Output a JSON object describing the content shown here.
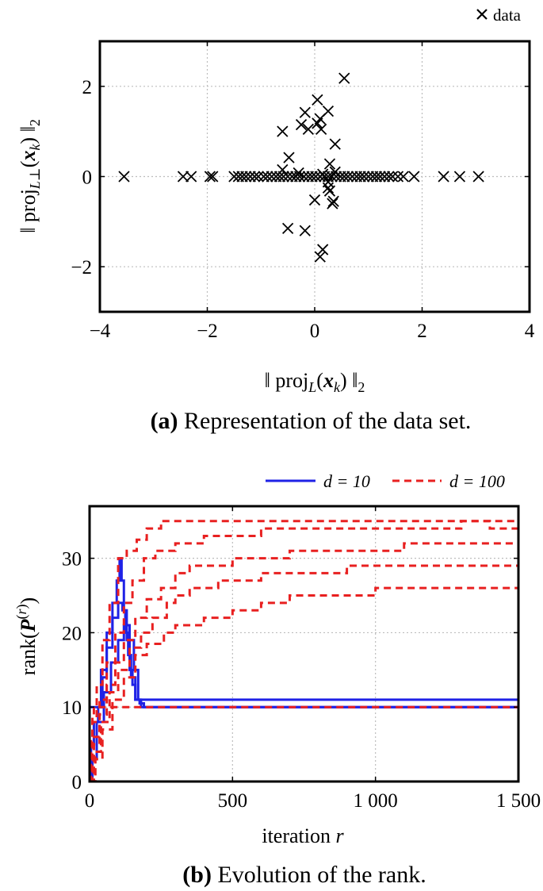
{
  "chart_data": [
    {
      "id": "a",
      "type": "scatter",
      "caption_label": "(a)",
      "caption_text": " Representation of the data set.",
      "xlabel": "‖ proj_L(x_k) ‖₂",
      "ylabel": "‖ proj_L⊥(x_k) ‖₂",
      "xlim": [
        -4,
        4
      ],
      "ylim": [
        -3,
        3
      ],
      "xticks": [
        -4,
        -2,
        0,
        2,
        4
      ],
      "xtick_labels": [
        "−4",
        "−2",
        "0",
        "2",
        "4"
      ],
      "yticks": [
        -2,
        0,
        2
      ],
      "ytick_labels": [
        "−2",
        "0",
        "2"
      ],
      "grid": true,
      "legend": {
        "position": "top-right",
        "entries": [
          {
            "name": "data",
            "marker": "x"
          }
        ]
      },
      "points": [
        [
          -3.55,
          0
        ],
        [
          -2.45,
          0
        ],
        [
          -2.3,
          0
        ],
        [
          -1.95,
          0
        ],
        [
          -1.9,
          0
        ],
        [
          -1.5,
          0
        ],
        [
          -1.42,
          0
        ],
        [
          -1.35,
          0
        ],
        [
          -1.28,
          0
        ],
        [
          -1.2,
          0
        ],
        [
          -1.12,
          0
        ],
        [
          -1.05,
          0
        ],
        [
          -0.95,
          0
        ],
        [
          -0.88,
          0
        ],
        [
          -0.8,
          0
        ],
        [
          -0.72,
          0
        ],
        [
          -0.65,
          0
        ],
        [
          -0.58,
          0
        ],
        [
          -0.5,
          0
        ],
        [
          -0.42,
          0
        ],
        [
          -0.35,
          0
        ],
        [
          -0.28,
          0
        ],
        [
          -0.2,
          0
        ],
        [
          -0.12,
          0
        ],
        [
          -0.05,
          0
        ],
        [
          0.02,
          0
        ],
        [
          0.1,
          0
        ],
        [
          0.18,
          0
        ],
        [
          0.25,
          0
        ],
        [
          0.32,
          0
        ],
        [
          0.4,
          0
        ],
        [
          0.48,
          0
        ],
        [
          0.55,
          0
        ],
        [
          0.62,
          0
        ],
        [
          0.7,
          0
        ],
        [
          0.78,
          0
        ],
        [
          0.85,
          0
        ],
        [
          0.92,
          0
        ],
        [
          1.0,
          0
        ],
        [
          1.08,
          0
        ],
        [
          1.15,
          0
        ],
        [
          1.22,
          0
        ],
        [
          1.3,
          0
        ],
        [
          1.38,
          0
        ],
        [
          1.45,
          0
        ],
        [
          1.55,
          0
        ],
        [
          1.65,
          0
        ],
        [
          1.85,
          0
        ],
        [
          2.4,
          0
        ],
        [
          2.7,
          0
        ],
        [
          3.05,
          0
        ],
        [
          0.55,
          2.18
        ],
        [
          0.05,
          1.7
        ],
        [
          0.25,
          1.45
        ],
        [
          -0.18,
          1.42
        ],
        [
          0.1,
          1.28
        ],
        [
          -0.25,
          1.15
        ],
        [
          0.05,
          1.18
        ],
        [
          -0.12,
          1.05
        ],
        [
          0.12,
          1.05
        ],
        [
          -0.6,
          1.0
        ],
        [
          0.38,
          0.72
        ],
        [
          -0.48,
          0.42
        ],
        [
          0.28,
          0.28
        ],
        [
          -0.6,
          0.15
        ],
        [
          0.38,
          0.1
        ],
        [
          -0.3,
          0.08
        ],
        [
          0.15,
          0.05
        ],
        [
          0.25,
          -0.12
        ],
        [
          0.25,
          -0.25
        ],
        [
          0.28,
          -0.32
        ],
        [
          0.35,
          -0.55
        ],
        [
          0.33,
          -0.6
        ],
        [
          0.0,
          -0.52
        ],
        [
          -0.5,
          -1.15
        ],
        [
          -0.18,
          -1.2
        ],
        [
          0.15,
          -1.62
        ],
        [
          0.1,
          -1.78
        ]
      ]
    },
    {
      "id": "b",
      "type": "line",
      "caption_label": "(b)",
      "caption_text": " Evolution of the rank.",
      "xlabel": "iteration",
      "xlabel_var": "r",
      "ylabel": "rank(P^(r))",
      "xlim": [
        0,
        1500
      ],
      "ylim": [
        0,
        37
      ],
      "xticks": [
        0,
        500,
        1000,
        1500
      ],
      "xtick_labels": [
        "0",
        "500",
        "1 000",
        "1 500"
      ],
      "yticks": [
        0,
        10,
        20,
        30
      ],
      "ytick_labels": [
        "0",
        "10",
        "20",
        "30"
      ],
      "grid": true,
      "legend": {
        "position": "top-right",
        "entries": [
          {
            "name": "d = 10",
            "color": "#1f22e6",
            "style": "solid"
          },
          {
            "name": "d = 100",
            "color": "#e82020",
            "style": "dashed"
          }
        ]
      },
      "series": [
        {
          "name": "d = 10",
          "color": "#1f22e6",
          "style": "solid",
          "x": [
            0,
            10,
            20,
            40,
            60,
            80,
            95,
            105,
            112,
            120,
            130,
            140,
            150,
            160,
            175,
            190,
            1500
          ],
          "y": [
            10,
            10,
            10,
            15,
            20,
            24,
            27,
            30,
            27,
            23,
            19,
            15,
            13,
            11,
            10.5,
            10,
            10
          ]
        },
        {
          "name": "d = 10",
          "color": "#1f22e6",
          "style": "solid",
          "x": [
            0,
            5,
            15,
            30,
            45,
            60,
            80,
            100,
            115,
            125,
            135,
            145,
            160,
            180,
            1500
          ],
          "y": [
            0,
            5,
            8,
            10,
            14,
            18,
            22,
            24,
            23,
            20,
            17,
            14,
            11,
            10,
            10
          ]
        },
        {
          "name": "d = 10",
          "color": "#1f22e6",
          "style": "solid",
          "x": [
            0,
            10,
            25,
            50,
            75,
            100,
            120,
            140,
            155,
            170,
            1500
          ],
          "y": [
            0,
            3,
            8,
            12,
            16,
            19,
            21,
            19,
            15,
            11,
            10
          ]
        },
        {
          "name": "d = 100",
          "color": "#e82020",
          "style": "dashed",
          "x": [
            0,
            10,
            25,
            45,
            70,
            100,
            130,
            165,
            200,
            250,
            300,
            400,
            500,
            600,
            700,
            800,
            900,
            1000,
            1100,
            1200,
            1300,
            1400,
            1500
          ],
          "y": [
            0,
            8,
            13,
            19,
            24,
            30,
            31,
            32.5,
            34,
            35,
            35,
            35,
            35,
            35,
            35,
            35,
            35,
            35,
            35,
            35,
            35,
            35,
            35
          ]
        },
        {
          "name": "d = 100",
          "color": "#e82020",
          "style": "dashed",
          "x": [
            0,
            15,
            35,
            60,
            90,
            120,
            150,
            190,
            230,
            300,
            350,
            400,
            500,
            600,
            700,
            800,
            900,
            1000,
            1100,
            1200,
            1300,
            1400,
            1500
          ],
          "y": [
            0,
            6,
            11,
            16,
            20,
            24,
            27,
            30,
            31,
            32,
            32,
            33,
            33,
            34,
            34,
            34,
            34,
            34,
            34,
            34,
            35,
            34,
            34
          ]
        },
        {
          "name": "d = 100",
          "color": "#e82020",
          "style": "dashed",
          "x": [
            0,
            15,
            35,
            60,
            90,
            120,
            160,
            200,
            250,
            300,
            350,
            400,
            500,
            600,
            700,
            800,
            900,
            1000,
            1100,
            1200,
            1300,
            1400,
            1500
          ],
          "y": [
            0,
            5,
            9,
            13,
            16,
            19,
            22,
            24.5,
            26,
            28,
            29,
            29,
            30,
            30,
            31,
            31,
            31,
            31,
            32,
            32,
            32,
            32,
            32
          ]
        },
        {
          "name": "d = 100",
          "color": "#e82020",
          "style": "dashed",
          "x": [
            0,
            20,
            40,
            70,
            100,
            140,
            180,
            220,
            270,
            300,
            350,
            400,
            450,
            500,
            600,
            700,
            800,
            900,
            1000,
            1200,
            1500
          ],
          "y": [
            0,
            4,
            8,
            12,
            15,
            18,
            20,
            22,
            24,
            25,
            26,
            26,
            27,
            27,
            28,
            28,
            28,
            29,
            29,
            29,
            29
          ]
        },
        {
          "name": "d = 100",
          "color": "#e82020",
          "style": "dashed",
          "x": [
            0,
            20,
            45,
            80,
            120,
            160,
            200,
            260,
            300,
            400,
            500,
            600,
            700,
            900,
            1000,
            1200,
            1500
          ],
          "y": [
            0,
            3,
            7,
            11,
            14,
            17,
            18.5,
            20,
            21,
            22,
            23,
            24,
            25,
            25,
            26,
            26,
            26
          ]
        },
        {
          "name": "d = 100",
          "color": "#e82020",
          "style": "dashed",
          "x": [
            0,
            5,
            10,
            15,
            1500
          ],
          "y": [
            0,
            6,
            9,
            10,
            10
          ]
        }
      ]
    }
  ]
}
